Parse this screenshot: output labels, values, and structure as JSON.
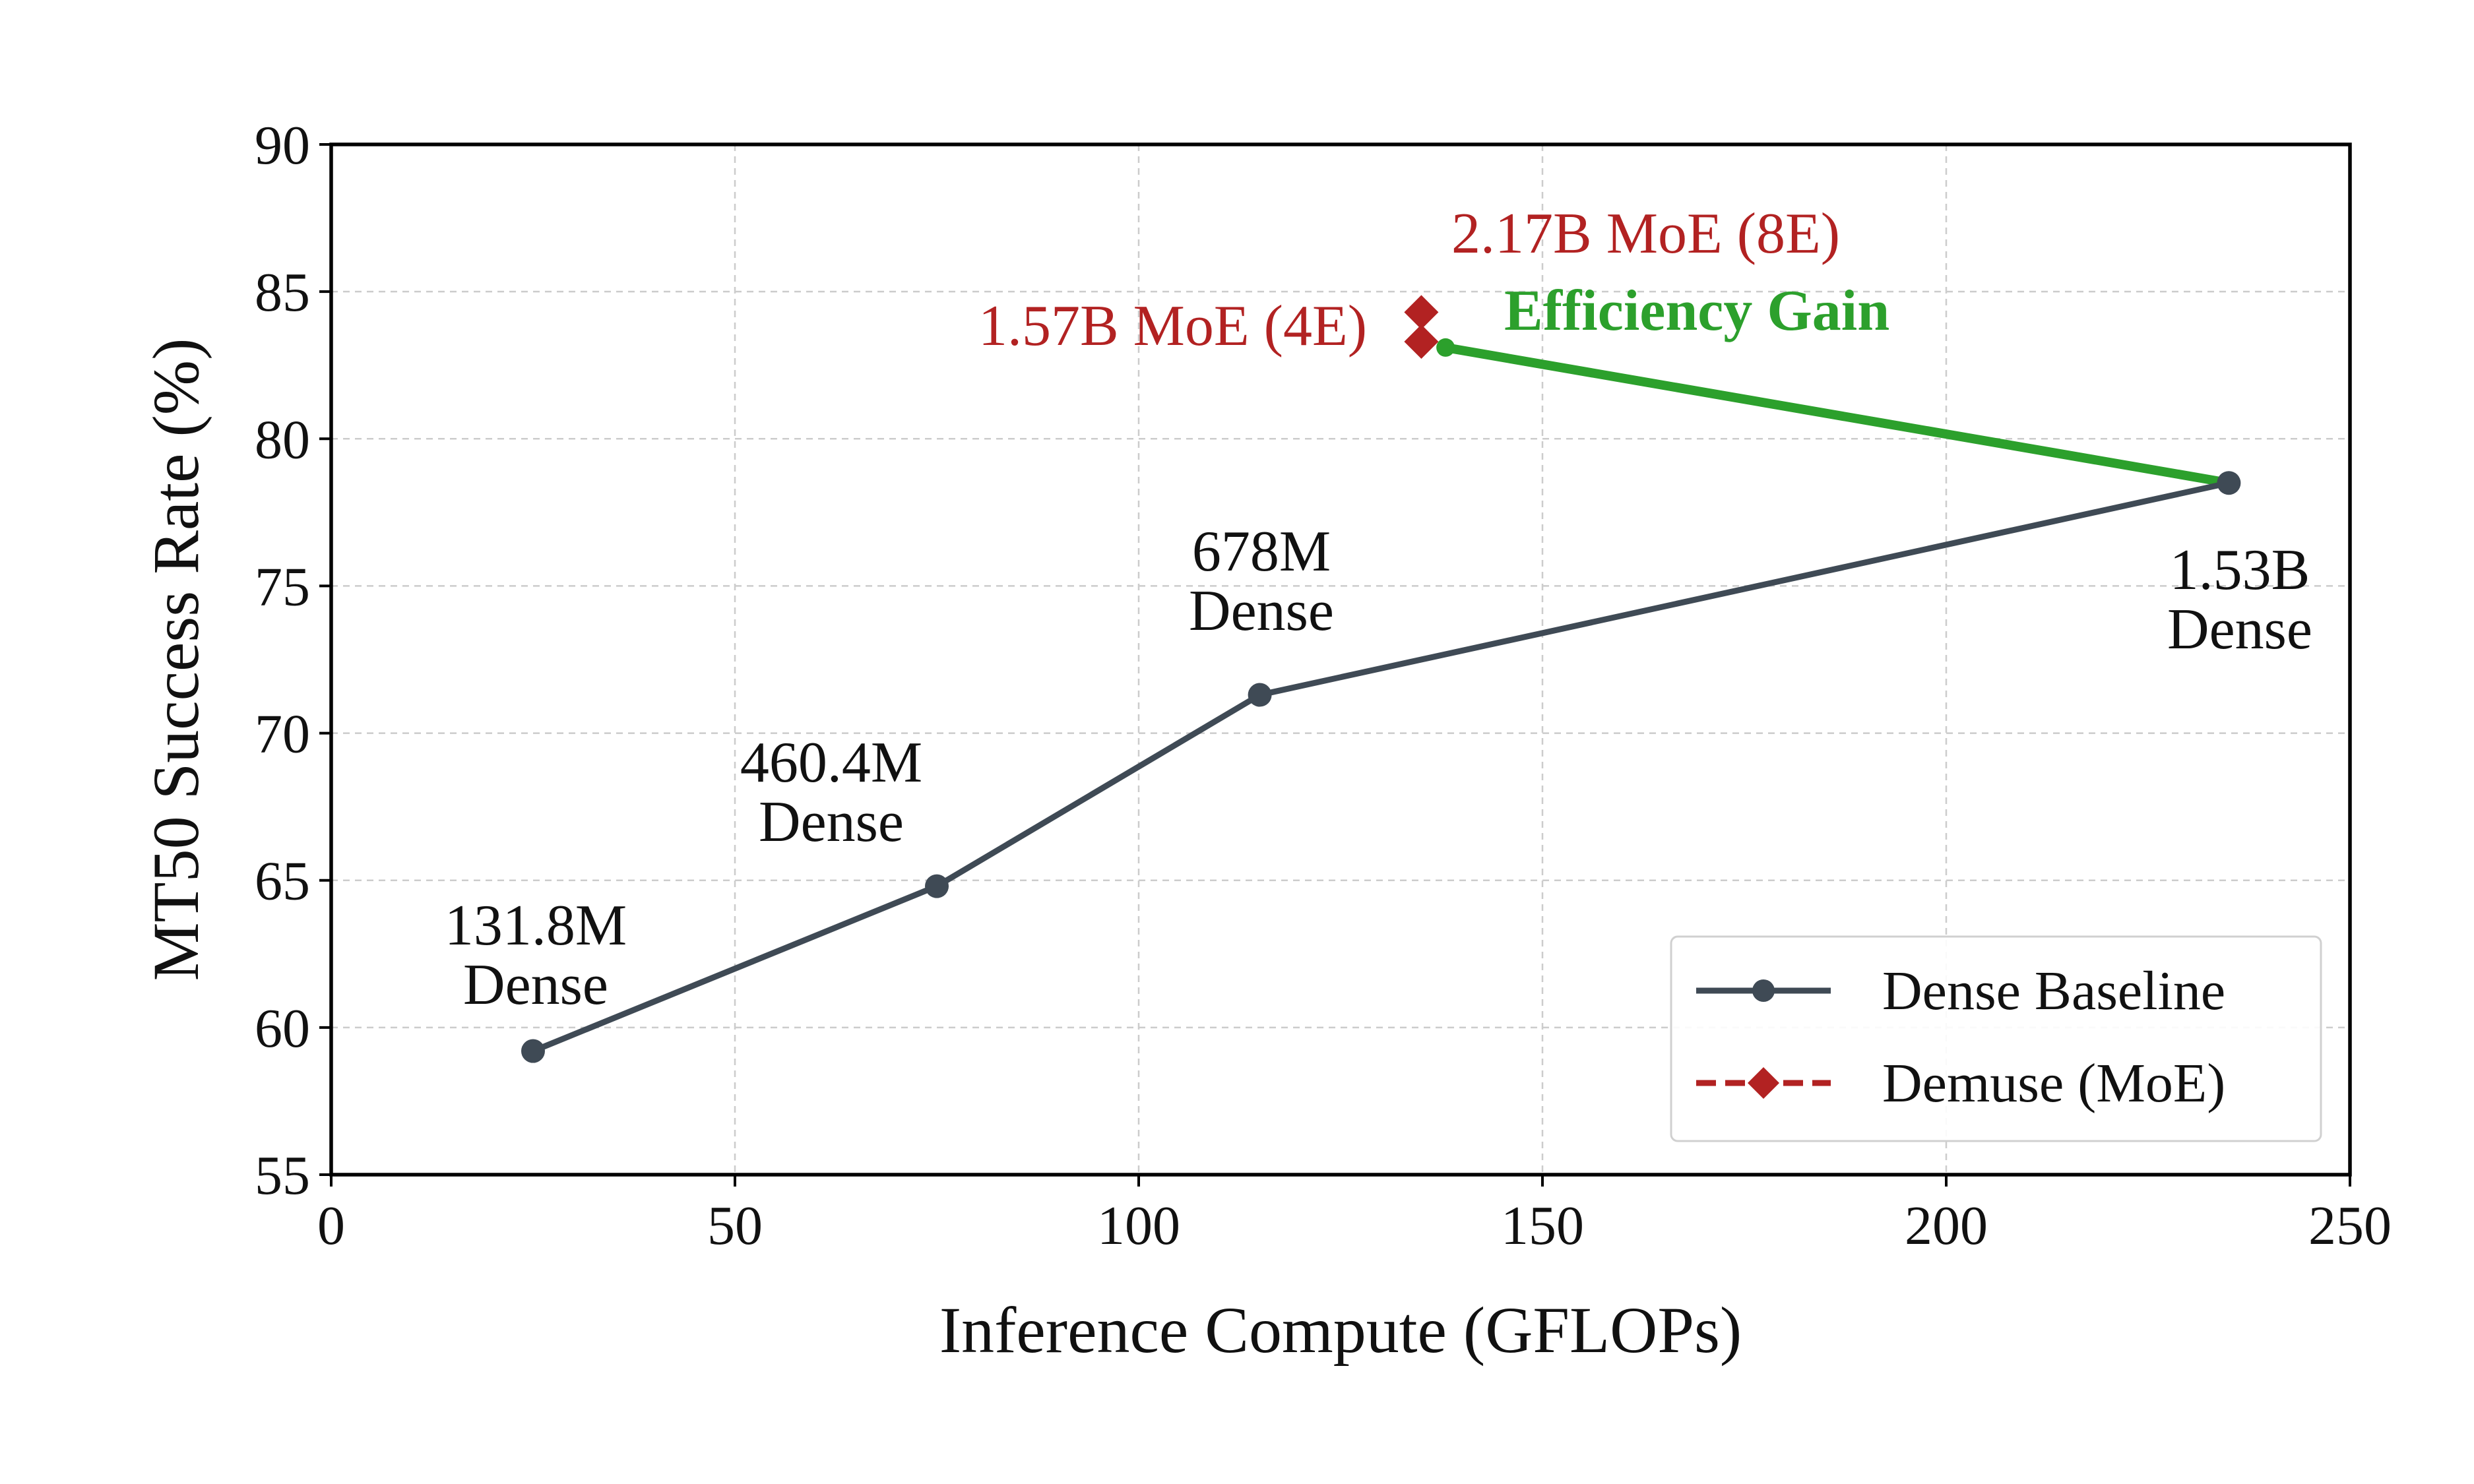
{
  "chart_data": {
    "type": "line",
    "title": "",
    "xlabel": "Inference Compute (GFLOPs)",
    "ylabel": "MT50 Success Rate (%)",
    "xlim": [
      0,
      250
    ],
    "ylim": [
      55,
      90
    ],
    "xticks": [
      0,
      50,
      100,
      150,
      200,
      250
    ],
    "yticks": [
      55,
      60,
      65,
      70,
      75,
      80,
      85,
      90
    ],
    "grid": true,
    "legend_position": "bottom-right",
    "series": [
      {
        "name": "Dense Baseline",
        "style": "solid line with circle markers",
        "color": "#3f4a55",
        "points": [
          {
            "x": 25,
            "y": 59.2,
            "label_line1": "131.8M",
            "label_line2": "Dense"
          },
          {
            "x": 75,
            "y": 64.8,
            "label_line1": "460.4M",
            "label_line2": "Dense"
          },
          {
            "x": 115,
            "y": 71.3,
            "label_line1": "678M",
            "label_line2": "Dense"
          },
          {
            "x": 235,
            "y": 78.5,
            "label_line1": "1.53B",
            "label_line2": "Dense"
          }
        ]
      },
      {
        "name": "Demuse (MoE)",
        "style": "dashed line with diamond markers",
        "color": "#b22222",
        "points": [
          {
            "x": 135,
            "y": 83.3,
            "label": "1.57B MoE (4E)"
          },
          {
            "x": 135,
            "y": 84.3,
            "label": "2.17B MoE (8E)"
          }
        ]
      }
    ],
    "annotations": [
      {
        "text": "Efficiency Gain",
        "color": "#2ca02c",
        "arrow_from": {
          "x": 235,
          "y": 78.5
        },
        "arrow_to": {
          "x": 138,
          "y": 83.1
        }
      }
    ]
  }
}
